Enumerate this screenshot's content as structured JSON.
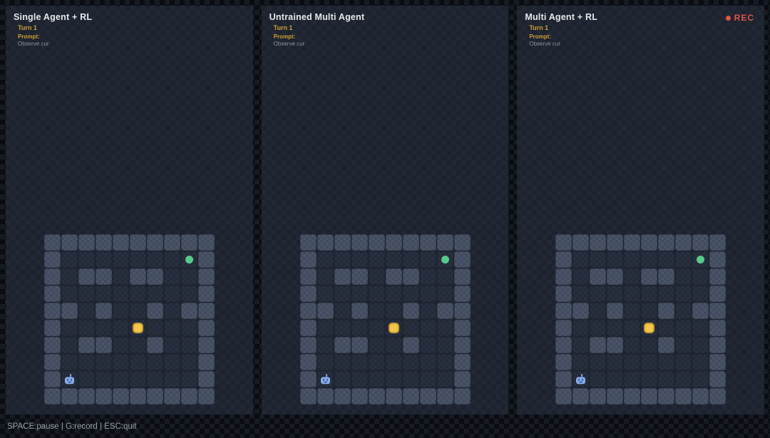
{
  "app": {
    "rec_label": "REC",
    "status_text": "SPACE:pause | G:record | ESC:quit"
  },
  "panels": [
    {
      "title": "Single Agent + RL",
      "turn_label": "Turn 1",
      "prompt_label": "Prompt:",
      "prompt_text": "Observe cur"
    },
    {
      "title": "Untrained Multi Agent",
      "turn_label": "Turn 1",
      "prompt_label": "Prompt:",
      "prompt_text": "Observe cur"
    },
    {
      "title": "Multi Agent + RL",
      "turn_label": "Turn 1",
      "prompt_label": "Prompt:",
      "prompt_text": "Observe cur"
    }
  ],
  "grid": {
    "rows": 10,
    "cols": 10,
    "wall_map": [
      "1111111111",
      "1000000001",
      "1011011001",
      "1000000001",
      "1101001011",
      "1000000001",
      "1011001001",
      "1000000001",
      "1000000001",
      "1111111111"
    ],
    "entities": [
      {
        "type": "goal",
        "name": "goal-dot",
        "row": 1,
        "col": 8
      },
      {
        "type": "item",
        "name": "item-square",
        "row": 5,
        "col": 5
      },
      {
        "type": "robot",
        "name": "robot-icon",
        "row": 8,
        "col": 1
      }
    ]
  },
  "colors": {
    "wall": "#4a5468",
    "floor": "#283040",
    "goal_green": "#58c98c",
    "item_yellow": "#f1c64b",
    "item_border": "#c89c2e",
    "robot_blue": "#85acee",
    "rec_red": "#e2544a",
    "accent_gold": "#cf9e36"
  }
}
